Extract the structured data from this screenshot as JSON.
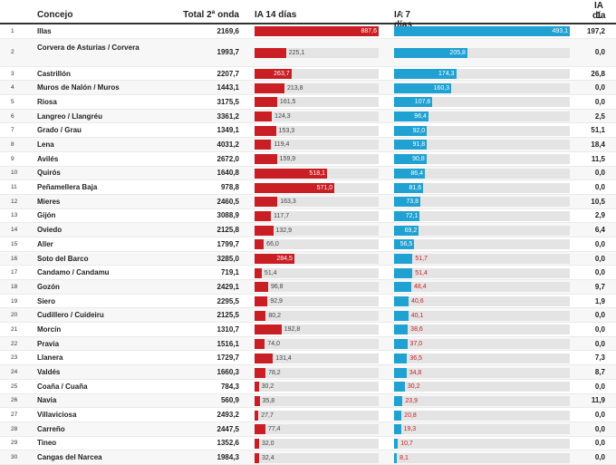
{
  "headers": {
    "concejo": "Concejo",
    "total": "Total 2ª onda",
    "ia14": "IA 14 días",
    "ia7": "IA 7 días",
    "ia1_line1": "IA 1",
    "ia1_line2": "día"
  },
  "icons": {
    "sort": "sort-triangle-icon"
  },
  "colors": {
    "ia14_bar": "#c81e24",
    "ia7_bar": "#1fa1d2",
    "track": "#e4e4e4"
  },
  "scale": {
    "ia14_max": 887.6,
    "ia7_max": 493.1
  },
  "rows": [
    {
      "n": "1",
      "name": "Illas",
      "total": "2169,6",
      "ia14": 887.6,
      "ia14_label": "887,6",
      "ia7": 493.1,
      "ia7_label": "493,1",
      "ia1": "197,2"
    },
    {
      "n": "2",
      "name": "Corvera de Asturias / Corvera",
      "total": "1993,7",
      "ia14": 225.1,
      "ia14_label": "225,1",
      "ia7": 205.8,
      "ia7_label": "205,8",
      "ia1": "0,0"
    },
    {
      "n": "3",
      "name": "Castrillón",
      "total": "2207,7",
      "ia14": 263.7,
      "ia14_label": "263,7",
      "ia7": 174.3,
      "ia7_label": "174,3",
      "ia1": "26,8"
    },
    {
      "n": "4",
      "name": "Muros de Nalón / Muros",
      "total": "1443,1",
      "ia14": 213.8,
      "ia14_label": "213,8",
      "ia7": 160.3,
      "ia7_label": "160,3",
      "ia1": "0,0"
    },
    {
      "n": "5",
      "name": "Riosa",
      "total": "3175,5",
      "ia14": 161.5,
      "ia14_label": "161,5",
      "ia7": 107.6,
      "ia7_label": "107,6",
      "ia1": "0,0"
    },
    {
      "n": "6",
      "name": "Langreo / Llangréu",
      "total": "3361,2",
      "ia14": 124.3,
      "ia14_label": "124,3",
      "ia7": 96.4,
      "ia7_label": "96,4",
      "ia1": "2,5"
    },
    {
      "n": "7",
      "name": "Grado / Grau",
      "total": "1349,1",
      "ia14": 153.3,
      "ia14_label": "153,3",
      "ia7": 92.0,
      "ia7_label": "92,0",
      "ia1": "51,1"
    },
    {
      "n": "8",
      "name": "Lena",
      "total": "4031,2",
      "ia14": 119.4,
      "ia14_label": "119,4",
      "ia7": 91.8,
      "ia7_label": "91,8",
      "ia1": "18,4"
    },
    {
      "n": "9",
      "name": "Avilés",
      "total": "2672,0",
      "ia14": 159.9,
      "ia14_label": "159,9",
      "ia7": 90.8,
      "ia7_label": "90,8",
      "ia1": "11,5"
    },
    {
      "n": "10",
      "name": "Quirós",
      "total": "1640,8",
      "ia14": 518.1,
      "ia14_label": "518,1",
      "ia7": 86.4,
      "ia7_label": "86,4",
      "ia1": "0,0"
    },
    {
      "n": "11",
      "name": "Peñamellera Baja",
      "total": "978,8",
      "ia14": 571.0,
      "ia14_label": "571,0",
      "ia7": 81.6,
      "ia7_label": "81,6",
      "ia1": "0,0"
    },
    {
      "n": "12",
      "name": "Mieres",
      "total": "2460,5",
      "ia14": 163.3,
      "ia14_label": "163,3",
      "ia7": 73.8,
      "ia7_label": "73,8",
      "ia1": "10,5"
    },
    {
      "n": "13",
      "name": "Gijón",
      "total": "3088,9",
      "ia14": 117.7,
      "ia14_label": "117,7",
      "ia7": 72.1,
      "ia7_label": "72,1",
      "ia1": "2,9"
    },
    {
      "n": "14",
      "name": "Oviedo",
      "total": "2125,8",
      "ia14": 132.9,
      "ia14_label": "132,9",
      "ia7": 69.2,
      "ia7_label": "69,2",
      "ia1": "6,4"
    },
    {
      "n": "15",
      "name": "Aller",
      "total": "1799,7",
      "ia14": 66.0,
      "ia14_label": "66,0",
      "ia7": 56.5,
      "ia7_label": "56,5",
      "ia1": "0,0"
    },
    {
      "n": "16",
      "name": "Soto del Barco",
      "total": "3285,0",
      "ia14": 284.5,
      "ia14_label": "284,5",
      "ia7": 51.7,
      "ia7_label": "51,7",
      "ia1": "0,0"
    },
    {
      "n": "17",
      "name": "Candamo / Candamu",
      "total": "719,1",
      "ia14": 51.4,
      "ia14_label": "51,4",
      "ia7": 51.4,
      "ia7_label": "51,4",
      "ia1": "0,0"
    },
    {
      "n": "18",
      "name": "Gozón",
      "total": "2429,1",
      "ia14": 96.8,
      "ia14_label": "96,8",
      "ia7": 48.4,
      "ia7_label": "48,4",
      "ia1": "9,7"
    },
    {
      "n": "19",
      "name": "Siero",
      "total": "2295,5",
      "ia14": 92.9,
      "ia14_label": "92,9",
      "ia7": 40.6,
      "ia7_label": "40,6",
      "ia1": "1,9"
    },
    {
      "n": "20",
      "name": "Cudillero / Cuideiru",
      "total": "2125,5",
      "ia14": 80.2,
      "ia14_label": "80,2",
      "ia7": 40.1,
      "ia7_label": "40,1",
      "ia1": "0,0"
    },
    {
      "n": "21",
      "name": "Morcín",
      "total": "1310,7",
      "ia14": 192.8,
      "ia14_label": "192,8",
      "ia7": 38.6,
      "ia7_label": "38,6",
      "ia1": "0,0"
    },
    {
      "n": "22",
      "name": "Pravia",
      "total": "1516,1",
      "ia14": 74.0,
      "ia14_label": "74,0",
      "ia7": 37.0,
      "ia7_label": "37,0",
      "ia1": "0,0"
    },
    {
      "n": "23",
      "name": "Llanera",
      "total": "1729,7",
      "ia14": 131.4,
      "ia14_label": "131,4",
      "ia7": 36.5,
      "ia7_label": "36,5",
      "ia1": "7,3"
    },
    {
      "n": "24",
      "name": "Valdés",
      "total": "1660,3",
      "ia14": 78.2,
      "ia14_label": "78,2",
      "ia7": 34.8,
      "ia7_label": "34,8",
      "ia1": "8,7"
    },
    {
      "n": "25",
      "name": "Coaña / Cuaña",
      "total": "784,3",
      "ia14": 30.2,
      "ia14_label": "30,2",
      "ia7": 30.2,
      "ia7_label": "30,2",
      "ia1": "0,0"
    },
    {
      "n": "26",
      "name": "Navia",
      "total": "560,9",
      "ia14": 35.8,
      "ia14_label": "35,8",
      "ia7": 23.9,
      "ia7_label": "23,9",
      "ia1": "11,9"
    },
    {
      "n": "27",
      "name": "Villaviciosa",
      "total": "2493,2",
      "ia14": 27.7,
      "ia14_label": "27,7",
      "ia7": 20.8,
      "ia7_label": "20,8",
      "ia1": "0,0"
    },
    {
      "n": "28",
      "name": "Carreño",
      "total": "2447,5",
      "ia14": 77.4,
      "ia14_label": "77,4",
      "ia7": 19.3,
      "ia7_label": "19,3",
      "ia1": "0,0"
    },
    {
      "n": "29",
      "name": "Tineo",
      "total": "1352,6",
      "ia14": 32.0,
      "ia14_label": "32,0",
      "ia7": 10.7,
      "ia7_label": "10,7",
      "ia1": "0,0"
    },
    {
      "n": "30",
      "name": "Cangas del Narcea",
      "total": "1984,3",
      "ia14": 32.4,
      "ia14_label": "32,4",
      "ia7": 8.1,
      "ia7_label": "8,1",
      "ia1": "0,0"
    }
  ]
}
